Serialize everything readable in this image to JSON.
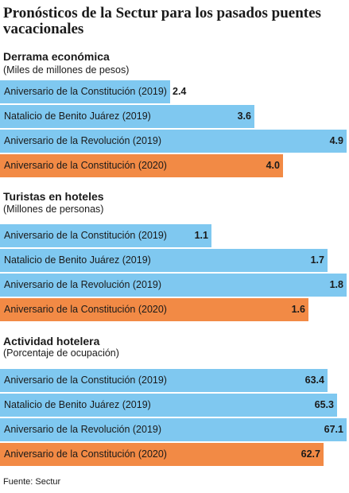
{
  "title": "Pronósticos de la Sectur para los pasados puentes vacacionales",
  "source": "Fuente: Sectur",
  "colors": {
    "blue": "#7fc8f0",
    "orange": "#f28a45"
  },
  "chart_data": [
    {
      "type": "bar",
      "orientation": "horizontal",
      "title": "Derrama económica",
      "subtitle": "(Miles de millones de pesos)",
      "categories": [
        "Aniversario de la Constitución (2019)",
        "Natalicio de Benito Juárez (2019)",
        "Aniversario de la Revolución (2019)",
        "Aniversario de la Constitución (2020)"
      ],
      "values": [
        2.4,
        3.6,
        4.9,
        4.0
      ],
      "value_labels": [
        "2.4",
        "3.6",
        "4.9",
        "4.0"
      ],
      "highlight_index": 3
    },
    {
      "type": "bar",
      "orientation": "horizontal",
      "title": "Turistas en hoteles",
      "subtitle": "(Millones de personas)",
      "categories": [
        "Aniversario de la Constitución (2019)",
        "Natalicio de Benito Juárez (2019)",
        "Aniversario de la Revolución (2019)",
        "Aniversario de la Constitución (2020)"
      ],
      "values": [
        1.1,
        1.7,
        1.8,
        1.6
      ],
      "value_labels": [
        "1.1",
        "1.7",
        "1.8",
        "1.6"
      ],
      "highlight_index": 3
    },
    {
      "type": "bar",
      "orientation": "horizontal",
      "title": "Actividad hotelera",
      "subtitle": "(Porcentaje de ocupación)",
      "categories": [
        "Aniversario de la Constitución (2019)",
        "Natalicio de Benito Juárez (2019)",
        "Aniversario de la Revolución (2019)",
        "Aniversario de la Constitución (2020)"
      ],
      "values": [
        63.4,
        65.3,
        67.1,
        62.7
      ],
      "value_labels": [
        "63.4",
        "65.3",
        "67.1",
        "62.7"
      ],
      "highlight_index": 3
    }
  ]
}
